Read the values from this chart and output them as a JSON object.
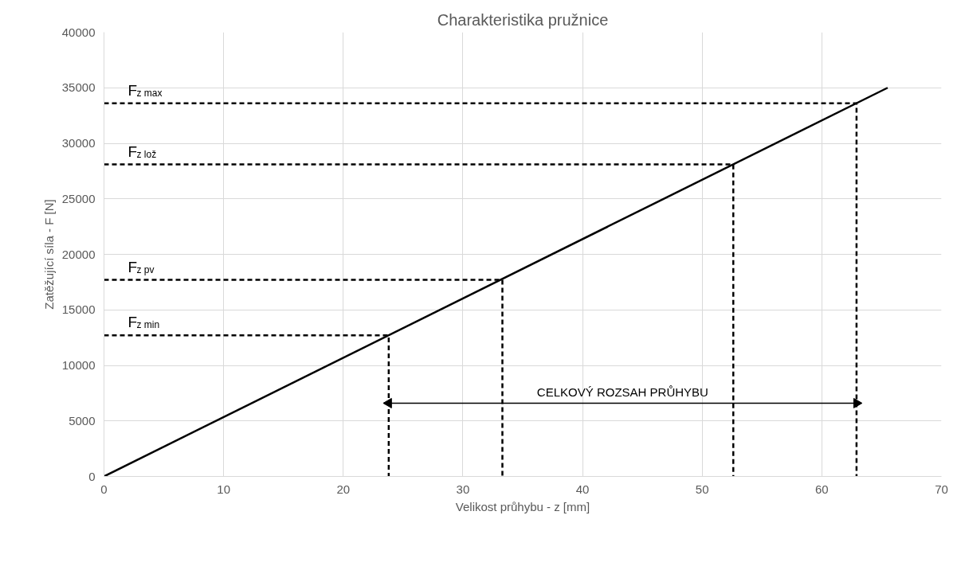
{
  "chart_data": {
    "type": "line",
    "title": "Charakteristika pružnice",
    "xlabel": "Velikost průhybu - z [mm]",
    "ylabel": "Zatěžující síla - F [N]",
    "xlim": [
      0,
      70
    ],
    "xticks": [
      0,
      10,
      20,
      30,
      40,
      50,
      60,
      70
    ],
    "ylim": [
      0,
      40000
    ],
    "yticks": [
      0,
      5000,
      10000,
      15000,
      20000,
      25000,
      30000,
      35000,
      40000
    ],
    "grid": true,
    "series": [
      {
        "color": "#000000",
        "x": [
          0,
          65.5
        ],
        "values": [
          0,
          35000
        ],
        "line_style": "solid"
      },
      {
        "name": "F$_{z max}$",
        "color": "#000000",
        "x": [
          0,
          62.9,
          62.9
        ],
        "values": [
          33600,
          33600,
          0
        ],
        "line_style": "dashed"
      },
      {
        "name": "F$_{z lož}$",
        "color": "#000000",
        "x": [
          0,
          52.6,
          52.6
        ],
        "values": [
          28100,
          28100,
          0
        ],
        "line_style": "dashed"
      },
      {
        "name": "F$_{z pv}$",
        "color": "#000000",
        "x": [
          0,
          33.3,
          33.3
        ],
        "values": [
          17700,
          17700,
          0
        ],
        "line_style": "dashed"
      },
      {
        "name": "F$_{z min}$",
        "color": "#000000",
        "x": [
          0,
          23.8,
          23.8
        ],
        "values": [
          12700,
          12700,
          0
        ],
        "line_style": "dashed"
      },
      {
        "color": "#000000",
        "x": [
          23.8,
          62.9
        ],
        "values": [
          6600,
          6600
        ],
        "line_style": "solid",
        "marker": "triangle"
      }
    ],
    "annotations": [
      "CELKOVÝ ROZSAH PRŮHYBU"
    ]
  }
}
